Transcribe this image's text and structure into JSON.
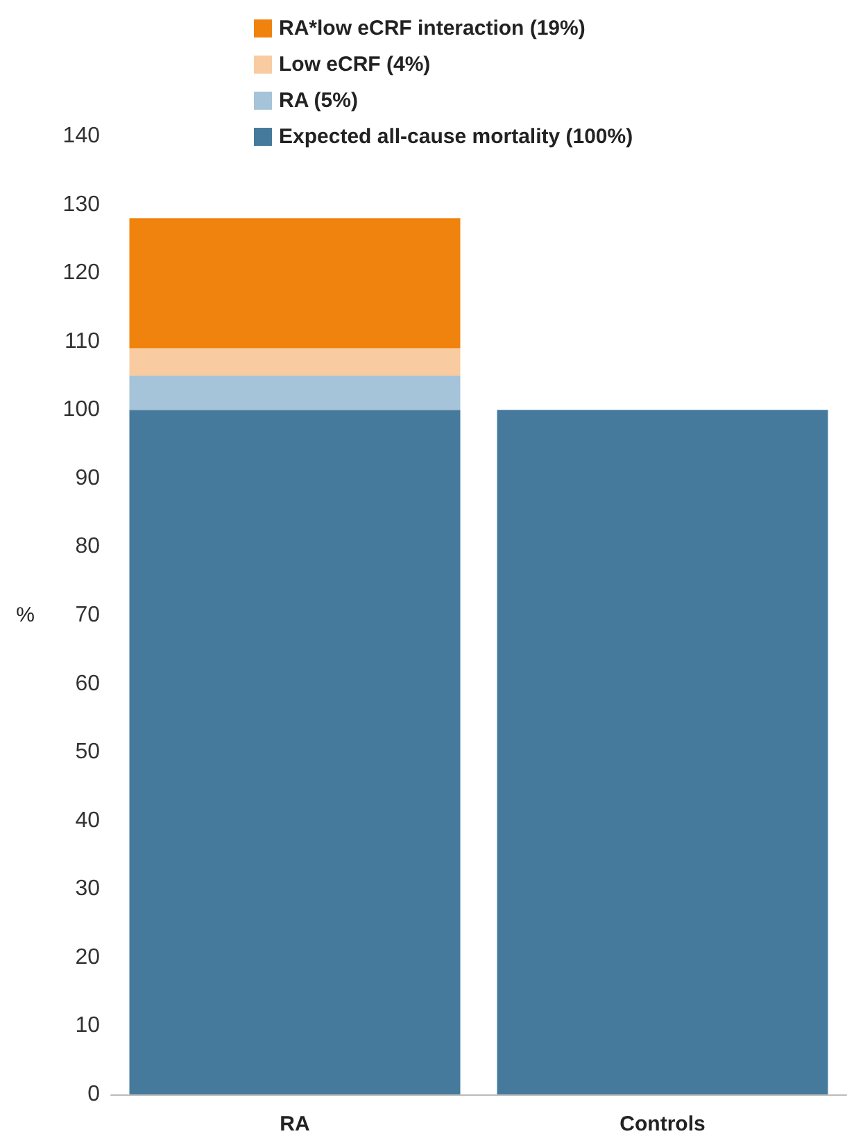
{
  "chart_data": {
    "type": "bar",
    "stacked": true,
    "ylabel": "%",
    "categories": [
      "RA",
      "Controls"
    ],
    "series": [
      {
        "name": "Expected all-cause mortality (100%)",
        "color": "#467a9c",
        "values": [
          100,
          100
        ]
      },
      {
        "name": "RA (5%)",
        "color": "#a5c3d9",
        "values": [
          5,
          null
        ]
      },
      {
        "name": "Low eCRF (4%)",
        "color": "#f8cba0",
        "values": [
          4,
          null
        ]
      },
      {
        "name": "RA*low eCRF interaction (19%)",
        "color": "#ef830e",
        "values": [
          19,
          null
        ]
      }
    ],
    "ylim": [
      0,
      140
    ],
    "yticks": [
      0,
      10,
      20,
      30,
      40,
      50,
      60,
      70,
      80,
      90,
      100,
      110,
      120,
      130,
      140
    ],
    "grid": false,
    "legend": "top"
  }
}
